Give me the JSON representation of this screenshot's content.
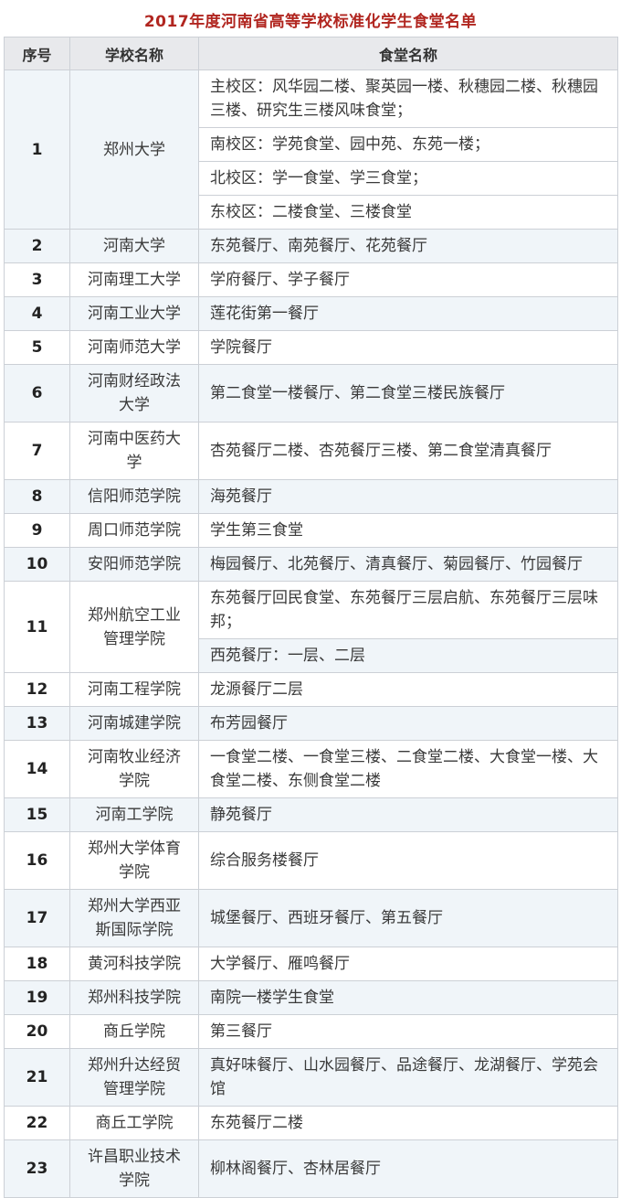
{
  "title": "2017年度河南省高等学校标准化学生食堂名单",
  "colors": {
    "title_red": "#b12620",
    "header_bg": "#e8e9ec",
    "stripe_bg": "#f0f5f9",
    "border": "#ccd0d6",
    "text": "#3a3a3a"
  },
  "table": {
    "headers": [
      "序号",
      "学校名称",
      "食堂名称"
    ],
    "rows": [
      {
        "no": "1",
        "school": "郑州大学",
        "shaded": true,
        "canteens": [
          {
            "text": "主校区：风华园二楼、聚英园一楼、秋穗园二楼、秋穗园三楼、研究生三楼风味食堂；",
            "shaded": false
          },
          {
            "text": "南校区：学苑食堂、园中苑、东苑一楼；",
            "shaded": false
          },
          {
            "text": "北校区：学一食堂、学三食堂；",
            "shaded": false
          },
          {
            "text": "东校区：二楼食堂、三楼食堂",
            "shaded": false
          }
        ]
      },
      {
        "no": "2",
        "school": "河南大学",
        "shaded": true,
        "canteens": [
          {
            "text": "东苑餐厅、南苑餐厅、花苑餐厅",
            "shaded": true
          }
        ]
      },
      {
        "no": "3",
        "school": "河南理工大学",
        "shaded": false,
        "canteens": [
          {
            "text": "学府餐厅、学子餐厅",
            "shaded": false
          }
        ]
      },
      {
        "no": "4",
        "school": "河南工业大学",
        "shaded": true,
        "canteens": [
          {
            "text": "莲花街第一餐厅",
            "shaded": true
          }
        ]
      },
      {
        "no": "5",
        "school": "河南师范大学",
        "shaded": false,
        "canteens": [
          {
            "text": "学院餐厅",
            "shaded": false
          }
        ]
      },
      {
        "no": "6",
        "school": "河南财经政法大学",
        "shaded": true,
        "canteens": [
          {
            "text": "第二食堂一楼餐厅、第二食堂三楼民族餐厅",
            "shaded": true
          }
        ]
      },
      {
        "no": "7",
        "school": "河南中医药大学",
        "shaded": false,
        "canteens": [
          {
            "text": "杏苑餐厅二楼、杏苑餐厅三楼、第二食堂清真餐厅",
            "shaded": false
          }
        ]
      },
      {
        "no": "8",
        "school": "信阳师范学院",
        "shaded": true,
        "canteens": [
          {
            "text": "海苑餐厅",
            "shaded": true
          }
        ]
      },
      {
        "no": "9",
        "school": "周口师范学院",
        "shaded": false,
        "canteens": [
          {
            "text": "学生第三食堂",
            "shaded": false
          }
        ]
      },
      {
        "no": "10",
        "school": "安阳师范学院",
        "shaded": true,
        "canteens": [
          {
            "text": "梅园餐厅、北苑餐厅、清真餐厅、菊园餐厅、竹园餐厅",
            "shaded": true
          }
        ]
      },
      {
        "no": "11",
        "school": "郑州航空工业管理学院",
        "shaded": false,
        "canteens": [
          {
            "text": "东苑餐厅回民食堂、东苑餐厅三层启航、东苑餐厅三层味邦；",
            "shaded": false
          },
          {
            "text": "西苑餐厅：一层、二层",
            "shaded": true
          }
        ]
      },
      {
        "no": "12",
        "school": "河南工程学院",
        "shaded": false,
        "canteens": [
          {
            "text": "龙源餐厅二层",
            "shaded": false
          }
        ]
      },
      {
        "no": "13",
        "school": "河南城建学院",
        "shaded": true,
        "canteens": [
          {
            "text": "布芳园餐厅",
            "shaded": true
          }
        ]
      },
      {
        "no": "14",
        "school": "河南牧业经济　学院",
        "shaded": false,
        "canteens": [
          {
            "text": "一食堂二楼、一食堂三楼、二食堂二楼、大食堂一楼、大食堂二楼、东侧食堂二楼",
            "shaded": false
          }
        ]
      },
      {
        "no": "15",
        "school": "河南工学院",
        "shaded": true,
        "canteens": [
          {
            "text": "静苑餐厅",
            "shaded": true
          }
        ]
      },
      {
        "no": "16",
        "school": "郑州大学体育学院",
        "shaded": false,
        "canteens": [
          {
            "text": "综合服务楼餐厅",
            "shaded": false
          }
        ]
      },
      {
        "no": "17",
        "school": "郑州大学西亚斯国际学院",
        "shaded": true,
        "canteens": [
          {
            "text": "城堡餐厅、西班牙餐厅、第五餐厅",
            "shaded": true
          }
        ]
      },
      {
        "no": "18",
        "school": "黄河科技学院",
        "shaded": false,
        "canteens": [
          {
            "text": "大学餐厅、雁鸣餐厅",
            "shaded": false
          }
        ]
      },
      {
        "no": "19",
        "school": "郑州科技学院",
        "shaded": true,
        "canteens": [
          {
            "text": "南院一楼学生食堂",
            "shaded": true
          }
        ]
      },
      {
        "no": "20",
        "school": "商丘学院",
        "shaded": false,
        "canteens": [
          {
            "text": "第三餐厅",
            "shaded": false
          }
        ]
      },
      {
        "no": "21",
        "school": "郑州升达经贸管理学院",
        "shaded": true,
        "canteens": [
          {
            "text": "真好味餐厅、山水园餐厅、品途餐厅、龙湖餐厅、学苑会馆",
            "shaded": true
          }
        ]
      },
      {
        "no": "22",
        "school": "商丘工学院",
        "shaded": false,
        "canteens": [
          {
            "text": "东苑餐厅二楼",
            "shaded": false
          }
        ]
      },
      {
        "no": "23",
        "school": "许昌职业技术学院",
        "shaded": true,
        "canteens": [
          {
            "text": "柳林阁餐厅、杏林居餐厅",
            "shaded": true
          }
        ]
      }
    ]
  }
}
